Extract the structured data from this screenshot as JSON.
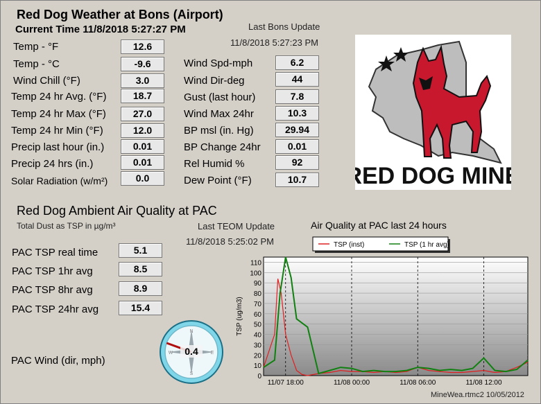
{
  "header": {
    "title": "Red Dog Weather at Bons (Airport)",
    "current_time_label": "Current Time",
    "current_time_value": "11/8/2018   5:27:27 PM",
    "last_update_label": "Last Bons Update",
    "last_update_value": "11/8/2018   5:27:23 PM"
  },
  "weather_left": [
    {
      "label": "Temp - °F",
      "value": "12.6"
    },
    {
      "label": "Temp - °C",
      "value": "-9.6"
    },
    {
      "label": "Wind Chill (°F)",
      "value": "3.0"
    },
    {
      "label": "Temp 24 hr Avg. (°F)",
      "value": "18.7"
    },
    {
      "label": "Temp 24 hr Max (°F)",
      "value": "27.0"
    },
    {
      "label": "Temp 24 hr Min  (°F)",
      "value": "12.0"
    },
    {
      "label": "Precip last hour (in.)",
      "value": "0.01"
    },
    {
      "label": "Precip 24 hrs (in.)",
      "value": "0.01"
    },
    {
      "label": "Solar Radiation (w/m²)",
      "value": "0.0"
    }
  ],
  "weather_right": [
    {
      "label": "Wind Spd-mph",
      "value": "6.2"
    },
    {
      "label": "Wind Dir-deg",
      "value": "44"
    },
    {
      "label": "Gust (last hour)",
      "value": "7.8"
    },
    {
      "label": "Wind Max 24hr",
      "value": "10.3"
    },
    {
      "label": "BP msl (in. Hg)",
      "value": "29.94"
    },
    {
      "label": "BP Change 24hr",
      "value": "0.01"
    },
    {
      "label": "Rel Humid %",
      "value": "92"
    },
    {
      "label": "Dew Point (°F)",
      "value": "10.7"
    }
  ],
  "logo": {
    "text": "RED DOG MINE"
  },
  "air_quality": {
    "title": "Red Dog Ambient Air Quality at PAC",
    "subtitle": "Total Dust as TSP in µg/m³",
    "last_update_label": "Last TEOM Update",
    "last_update_value": "11/8/2018   5:25:02 PM",
    "readings": [
      {
        "label": "PAC TSP real time",
        "value": "5.1"
      },
      {
        "label": "PAC TSP 1hr avg",
        "value": "8.5"
      },
      {
        "label": "PAC TSP 8hr avg",
        "value": "8.9"
      },
      {
        "label": "PAC TSP 24hr avg",
        "value": "15.4"
      }
    ],
    "wind_label": "PAC Wind (dir, mph)",
    "wind_speed": "0.4",
    "wind_direction_deg": 290,
    "compass": {
      "n": "N",
      "s": "S",
      "w": "W",
      "e": "E"
    }
  },
  "chart_data": {
    "type": "line",
    "title": "Air Quality at PAC last 24 hours",
    "xlabel": "",
    "ylabel": "TSP (ug/m3)",
    "xlim": [
      16.0,
      40.0
    ],
    "ylim": [
      0,
      115
    ],
    "yticks": [
      0,
      10,
      20,
      30,
      40,
      50,
      60,
      70,
      80,
      90,
      100,
      110
    ],
    "xticks": [
      {
        "x": 18,
        "label": "11/07 18:00"
      },
      {
        "x": 24,
        "label": "11/08 00:00"
      },
      {
        "x": 30,
        "label": "11/08 06:00"
      },
      {
        "x": 36,
        "label": "11/08 12:00"
      }
    ],
    "grid": true,
    "legend": "top",
    "series": [
      {
        "name": "TSP (inst)",
        "color": "#e02020",
        "x": [
          16.0,
          17.0,
          17.3,
          17.6,
          18.0,
          18.5,
          19.0,
          19.5,
          20.0,
          21.0,
          22.0,
          23.0,
          24.0,
          25.0,
          26.0,
          27.0,
          28.0,
          29.0,
          30.0,
          31.0,
          32.0,
          33.0,
          34.0,
          35.0,
          36.0,
          37.0,
          38.0,
          39.0,
          40.0
        ],
        "y": [
          8,
          40,
          94,
          80,
          40,
          20,
          5,
          1,
          0,
          2,
          3,
          5,
          4,
          4,
          3,
          4,
          3,
          4,
          8,
          5,
          4,
          3,
          3,
          4,
          5,
          3,
          4,
          8,
          13
        ]
      },
      {
        "name": "TSP (1 hr avg)",
        "color": "#108010",
        "x": [
          16.0,
          17.0,
          17.5,
          18.0,
          18.5,
          19.0,
          20.0,
          21.0,
          22.0,
          23.0,
          24.0,
          25.0,
          26.0,
          27.0,
          28.0,
          29.0,
          30.0,
          31.0,
          32.0,
          33.0,
          34.0,
          35.0,
          36.0,
          37.0,
          38.0,
          39.0,
          40.0
        ],
        "y": [
          8,
          15,
          80,
          116,
          95,
          55,
          47,
          2,
          5,
          8,
          7,
          4,
          5,
          4,
          4,
          5,
          8,
          7,
          5,
          6,
          5,
          7,
          17,
          5,
          4,
          6,
          15
        ]
      }
    ]
  },
  "footer": {
    "version": "MineWea.rtmc2 10/05/2012"
  }
}
